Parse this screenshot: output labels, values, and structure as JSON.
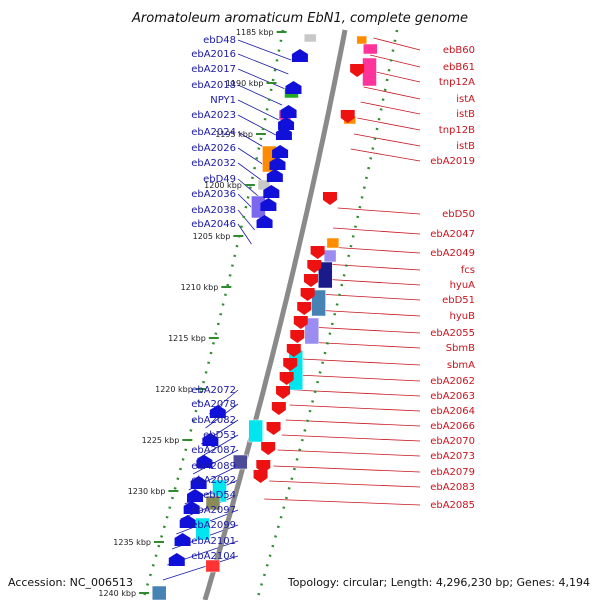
{
  "title": "Aromatoleum aromaticum EbN1, complete genome",
  "footer": {
    "accession": "Accession: NC_006513",
    "summary": "Topology: circular; Length: 4,296,230 bp; Genes: 4,194"
  },
  "colors": {
    "forward_gene": "#1a1aa6",
    "reverse_gene": "#c8141e",
    "backbone": "#8a8a8a",
    "tick": "#2e8b2e"
  },
  "ticks": [
    "1185 kbp",
    "1190 kbp",
    "1195 kbp",
    "1200 kbp",
    "1205 kbp",
    "1210 kbp",
    "1215 kbp",
    "1220 kbp",
    "1225 kbp",
    "1230 kbp",
    "1235 kbp",
    "1240 kbp"
  ],
  "left_labels": [
    "ebD48",
    "ebA2016",
    "ebA2017",
    "ebA2018",
    "NPY1",
    "ebA2023",
    "ebA2024",
    "ebA2026",
    "ebA2032",
    "ebD49",
    "ebA2036",
    "ebA2038",
    "ebA2046",
    "ebA2072",
    "ebA2078",
    "ebA2082",
    "ebD53",
    "ebA2087",
    "ebA2089",
    "ebA2092",
    "ebD54",
    "ebA2097",
    "ebA2099",
    "ebA2101",
    "ebA2104"
  ],
  "right_labels": [
    "ebB60",
    "ebB61",
    "tnp12A",
    "istA",
    "istB",
    "tnp12B",
    "istB",
    "ebA2019",
    "ebD50",
    "ebA2047",
    "ebA2049",
    "fcs",
    "hyuA",
    "ebD51",
    "hyuB",
    "ebA2055",
    "SbmB",
    "sbmA",
    "ebA2062",
    "ebA2063",
    "ebA2064",
    "ebA2066",
    "ebA2070",
    "ebA2073",
    "ebA2079",
    "ebA2083",
    "ebA2085"
  ]
}
